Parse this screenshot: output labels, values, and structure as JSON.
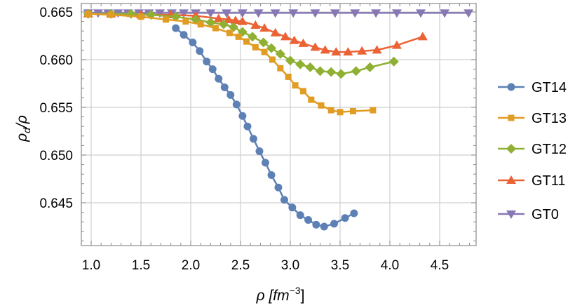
{
  "chart_data": {
    "type": "line",
    "title": "",
    "xlabel": "ρ [fm⁻³]",
    "ylabel": "ρ_d/ρ",
    "xlim": [
      0.9,
      4.88
    ],
    "ylim": [
      0.6405,
      0.6652
    ],
    "grid": true,
    "legend_position": "right",
    "x_ticks": [
      "1.0",
      "1.5",
      "2.0",
      "2.5",
      "3.0",
      "3.5",
      "4.0",
      "4.5"
    ],
    "y_ticks": [
      "0.645",
      "0.650",
      "0.655",
      "0.660",
      "0.665"
    ],
    "series": [
      {
        "name": "GT14",
        "color": "#5E81B5",
        "marker": "circle",
        "x": [
          1.85,
          1.93,
          2.02,
          2.09,
          2.16,
          2.22,
          2.28,
          2.34,
          2.4,
          2.46,
          2.52,
          2.57,
          2.63,
          2.69,
          2.75,
          2.81,
          2.88,
          2.94,
          3.02,
          3.1,
          3.18,
          3.26,
          3.34,
          3.44,
          3.55,
          3.64
        ],
        "y": [
          0.6633,
          0.6626,
          0.6618,
          0.6609,
          0.6598,
          0.659,
          0.658,
          0.6571,
          0.6563,
          0.6553,
          0.6541,
          0.653,
          0.6517,
          0.6504,
          0.6492,
          0.6479,
          0.6466,
          0.6453,
          0.6445,
          0.6437,
          0.6432,
          0.6427,
          0.6425,
          0.6428,
          0.6434,
          0.6439
        ]
      },
      {
        "name": "GT13",
        "color": "#E19C24",
        "marker": "square",
        "x": [
          0.97,
          1.2,
          1.5,
          1.75,
          1.95,
          2.1,
          2.25,
          2.39,
          2.48,
          2.56,
          2.65,
          2.74,
          2.82,
          2.9,
          2.98,
          3.05,
          3.13,
          3.21,
          3.31,
          3.41,
          3.5,
          3.63,
          3.83
        ],
        "y": [
          0.6648,
          0.6647,
          0.6645,
          0.6642,
          0.664,
          0.6637,
          0.6633,
          0.6628,
          0.6624,
          0.6619,
          0.6613,
          0.6608,
          0.66,
          0.6591,
          0.6582,
          0.6573,
          0.6567,
          0.6558,
          0.6552,
          0.6547,
          0.6545,
          0.6546,
          0.6547
        ]
      },
      {
        "name": "GT12",
        "color": "#8FB032",
        "marker": "diamond",
        "x": [
          0.97,
          1.2,
          1.4,
          1.6,
          1.85,
          2.05,
          2.2,
          2.33,
          2.43,
          2.52,
          2.62,
          2.73,
          2.81,
          2.9,
          3.0,
          3.1,
          3.2,
          3.3,
          3.41,
          3.51,
          3.66,
          3.8,
          4.04
        ],
        "y": [
          0.6648,
          0.6648,
          0.6648,
          0.6647,
          0.6645,
          0.6642,
          0.6639,
          0.6637,
          0.6634,
          0.6629,
          0.6624,
          0.6618,
          0.6612,
          0.6606,
          0.6599,
          0.6595,
          0.6592,
          0.6588,
          0.6587,
          0.6585,
          0.6588,
          0.6592,
          0.6598
        ]
      },
      {
        "name": "GT11",
        "color": "#EB6235",
        "marker": "triangle-up",
        "x": [
          0.97,
          1.2,
          1.5,
          1.8,
          2.05,
          2.28,
          2.38,
          2.45,
          2.52,
          2.65,
          2.74,
          2.85,
          2.95,
          3.04,
          3.13,
          3.25,
          3.35,
          3.46,
          3.58,
          3.72,
          3.87,
          4.07,
          4.33
        ],
        "y": [
          0.6648,
          0.6648,
          0.6647,
          0.6647,
          0.6646,
          0.6643,
          0.6642,
          0.6641,
          0.664,
          0.6636,
          0.6633,
          0.6628,
          0.6624,
          0.662,
          0.6617,
          0.6613,
          0.661,
          0.6608,
          0.6608,
          0.6609,
          0.661,
          0.6615,
          0.6624
        ]
      },
      {
        "name": "GT0",
        "color": "#8778B3",
        "marker": "triangle-down",
        "x": [
          0.97,
          1.07,
          1.17,
          1.27,
          1.37,
          1.48,
          1.58,
          1.69,
          1.81,
          1.93,
          2.05,
          2.2,
          2.36,
          2.52,
          2.68,
          2.85,
          3.03,
          3.25,
          3.45,
          3.65,
          3.86,
          4.07,
          4.31,
          4.55,
          4.79
        ],
        "y": [
          0.6649,
          0.6649,
          0.6649,
          0.6649,
          0.6649,
          0.6649,
          0.6649,
          0.6649,
          0.6649,
          0.6649,
          0.6649,
          0.6649,
          0.6649,
          0.6649,
          0.6649,
          0.6649,
          0.6649,
          0.6649,
          0.6649,
          0.6649,
          0.6649,
          0.6649,
          0.6649,
          0.6649,
          0.6649
        ]
      }
    ]
  },
  "legend": {
    "items": [
      {
        "label": "GT14"
      },
      {
        "label": "GT13"
      },
      {
        "label": "GT12"
      },
      {
        "label": "GT11"
      },
      {
        "label": "GT0"
      }
    ]
  },
  "axes": {
    "x_title_main": "ρ [fm",
    "x_title_sup": "−3",
    "x_title_end": "]",
    "y_title_main": "ρ",
    "y_title_sub": "d",
    "y_title_end": "/ρ"
  }
}
